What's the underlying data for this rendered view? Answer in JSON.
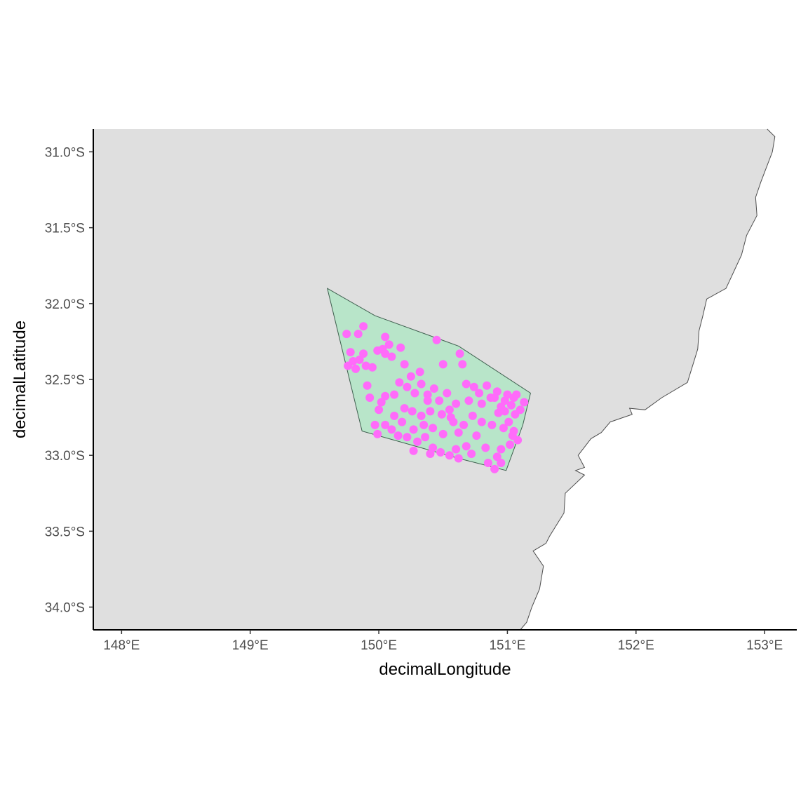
{
  "colors": {
    "land": "#dfdfdf",
    "coast": "#4d4d4d",
    "hull_fill": "#b8e5c9",
    "hull_stroke": "#3f5f4f",
    "points": "#ff6bfa",
    "axis": "#000000"
  },
  "chart_data": {
    "type": "scatter",
    "xlabel": "decimalLongitude",
    "ylabel": "decimalLatitude",
    "xlim": [
      147.78,
      153.25
    ],
    "ylim": [
      -34.15,
      -30.85
    ],
    "x_ticks": [
      {
        "value": 148,
        "label": "148°E"
      },
      {
        "value": 149,
        "label": "149°E"
      },
      {
        "value": 150,
        "label": "150°E"
      },
      {
        "value": 151,
        "label": "151°E"
      },
      {
        "value": 152,
        "label": "152°E"
      },
      {
        "value": 153,
        "label": "153°E"
      }
    ],
    "y_ticks": [
      {
        "value": -31.0,
        "label": "31.0°S"
      },
      {
        "value": -31.5,
        "label": "31.5°S"
      },
      {
        "value": -32.0,
        "label": "32.0°S"
      },
      {
        "value": -32.5,
        "label": "32.5°S"
      },
      {
        "value": -33.0,
        "label": "33.0°S"
      },
      {
        "value": -33.5,
        "label": "33.5°S"
      },
      {
        "value": -34.0,
        "label": "34.0°S"
      }
    ],
    "coastline": [
      [
        153.02,
        -30.85
      ],
      [
        153.08,
        -30.9
      ],
      [
        153.06,
        -31.0
      ],
      [
        152.97,
        -31.2
      ],
      [
        152.93,
        -31.3
      ],
      [
        152.94,
        -31.42
      ],
      [
        152.86,
        -31.55
      ],
      [
        152.82,
        -31.68
      ],
      [
        152.7,
        -31.9
      ],
      [
        152.55,
        -31.97
      ],
      [
        152.52,
        -32.08
      ],
      [
        152.49,
        -32.18
      ],
      [
        152.48,
        -32.3
      ],
      [
        152.4,
        -32.52
      ],
      [
        152.2,
        -32.62
      ],
      [
        152.07,
        -32.7
      ],
      [
        151.95,
        -32.69
      ],
      [
        151.97,
        -32.73
      ],
      [
        151.8,
        -32.78
      ],
      [
        151.73,
        -32.85
      ],
      [
        151.65,
        -32.89
      ],
      [
        151.55,
        -33.0
      ],
      [
        151.6,
        -33.08
      ],
      [
        151.53,
        -33.1
      ],
      [
        151.6,
        -33.13
      ],
      [
        151.45,
        -33.25
      ],
      [
        151.44,
        -33.38
      ],
      [
        151.33,
        -33.53
      ],
      [
        151.3,
        -33.58
      ],
      [
        151.2,
        -33.63
      ],
      [
        151.28,
        -33.73
      ],
      [
        151.25,
        -33.88
      ],
      [
        151.19,
        -34.0
      ],
      [
        151.15,
        -34.1
      ],
      [
        151.1,
        -34.15
      ]
    ],
    "hull": [
      [
        149.6,
        -31.9
      ],
      [
        149.97,
        -32.08
      ],
      [
        150.62,
        -32.28
      ],
      [
        151.18,
        -32.59
      ],
      [
        151.12,
        -32.8
      ],
      [
        150.99,
        -33.1
      ],
      [
        150.62,
        -33.02
      ],
      [
        149.87,
        -32.84
      ],
      [
        149.6,
        -31.9
      ]
    ],
    "series": [
      {
        "points": [
          [
            149.75,
            -32.2
          ],
          [
            149.84,
            -32.2
          ],
          [
            149.88,
            -32.15
          ],
          [
            149.78,
            -32.32
          ],
          [
            149.8,
            -32.38
          ],
          [
            149.76,
            -32.41
          ],
          [
            149.85,
            -32.37
          ],
          [
            149.9,
            -32.41
          ],
          [
            149.82,
            -32.43
          ],
          [
            149.88,
            -32.33
          ],
          [
            149.95,
            -32.42
          ],
          [
            149.99,
            -32.31
          ],
          [
            150.03,
            -32.3
          ],
          [
            150.05,
            -32.22
          ],
          [
            150.08,
            -32.27
          ],
          [
            150.17,
            -32.29
          ],
          [
            150.05,
            -32.33
          ],
          [
            149.91,
            -32.54
          ],
          [
            149.93,
            -32.62
          ],
          [
            150.02,
            -32.65
          ],
          [
            150.0,
            -32.7
          ],
          [
            150.05,
            -32.61
          ],
          [
            150.2,
            -32.4
          ],
          [
            150.25,
            -32.48
          ],
          [
            150.32,
            -32.45
          ],
          [
            150.22,
            -32.55
          ],
          [
            150.28,
            -32.59
          ],
          [
            150.2,
            -32.69
          ],
          [
            150.26,
            -32.71
          ],
          [
            150.33,
            -32.74
          ],
          [
            150.38,
            -32.6
          ],
          [
            150.43,
            -32.56
          ],
          [
            150.4,
            -32.71
          ],
          [
            150.47,
            -32.64
          ],
          [
            150.53,
            -32.59
          ],
          [
            150.45,
            -32.24
          ],
          [
            150.5,
            -32.4
          ],
          [
            150.63,
            -32.33
          ],
          [
            150.65,
            -32.4
          ],
          [
            150.58,
            -32.78
          ],
          [
            150.62,
            -32.85
          ],
          [
            150.68,
            -32.53
          ],
          [
            150.74,
            -32.55
          ],
          [
            150.8,
            -32.66
          ],
          [
            150.84,
            -32.54
          ],
          [
            150.92,
            -32.58
          ],
          [
            150.98,
            -32.64
          ],
          [
            151.03,
            -32.67
          ],
          [
            151.06,
            -32.73
          ],
          [
            151.01,
            -32.78
          ],
          [
            151.05,
            -32.84
          ],
          [
            151.08,
            -32.9
          ],
          [
            151.02,
            -32.93
          ],
          [
            150.95,
            -32.96
          ],
          [
            150.92,
            -33.01
          ],
          [
            150.9,
            -33.09
          ],
          [
            150.95,
            -33.05
          ],
          [
            150.83,
            -32.95
          ],
          [
            150.76,
            -32.87
          ],
          [
            150.68,
            -32.94
          ],
          [
            150.6,
            -32.96
          ],
          [
            150.55,
            -33.0
          ],
          [
            150.48,
            -32.98
          ],
          [
            150.42,
            -32.95
          ],
          [
            150.36,
            -32.88
          ],
          [
            150.3,
            -32.91
          ],
          [
            150.22,
            -32.88
          ],
          [
            150.15,
            -32.87
          ],
          [
            150.1,
            -32.83
          ],
          [
            150.05,
            -32.8
          ],
          [
            149.97,
            -32.8
          ],
          [
            149.99,
            -32.86
          ],
          [
            150.12,
            -32.74
          ],
          [
            150.18,
            -32.78
          ],
          [
            150.27,
            -32.83
          ],
          [
            150.35,
            -32.8
          ],
          [
            150.42,
            -32.82
          ],
          [
            150.5,
            -32.86
          ],
          [
            150.56,
            -32.75
          ],
          [
            150.66,
            -32.8
          ],
          [
            150.73,
            -32.74
          ],
          [
            150.8,
            -32.78
          ],
          [
            150.88,
            -32.8
          ],
          [
            150.93,
            -32.72
          ],
          [
            150.97,
            -32.82
          ],
          [
            151.1,
            -32.7
          ],
          [
            151.13,
            -32.65
          ],
          [
            151.07,
            -32.6
          ],
          [
            151.0,
            -32.6
          ],
          [
            150.95,
            -32.68
          ],
          [
            150.87,
            -32.62
          ],
          [
            150.78,
            -32.59
          ],
          [
            150.7,
            -32.64
          ],
          [
            150.6,
            -32.66
          ],
          [
            150.55,
            -32.7
          ],
          [
            150.49,
            -32.73
          ],
          [
            150.38,
            -32.64
          ],
          [
            150.33,
            -32.53
          ],
          [
            150.16,
            -32.52
          ],
          [
            150.12,
            -32.6
          ],
          [
            150.27,
            -32.97
          ],
          [
            150.4,
            -32.99
          ],
          [
            150.62,
            -33.02
          ],
          [
            150.72,
            -32.99
          ],
          [
            150.85,
            -33.05
          ],
          [
            151.04,
            -32.87
          ],
          [
            150.98,
            -32.71
          ],
          [
            150.9,
            -32.62
          ],
          [
            151.05,
            -32.62
          ],
          [
            150.1,
            -32.35
          ]
        ]
      }
    ]
  }
}
